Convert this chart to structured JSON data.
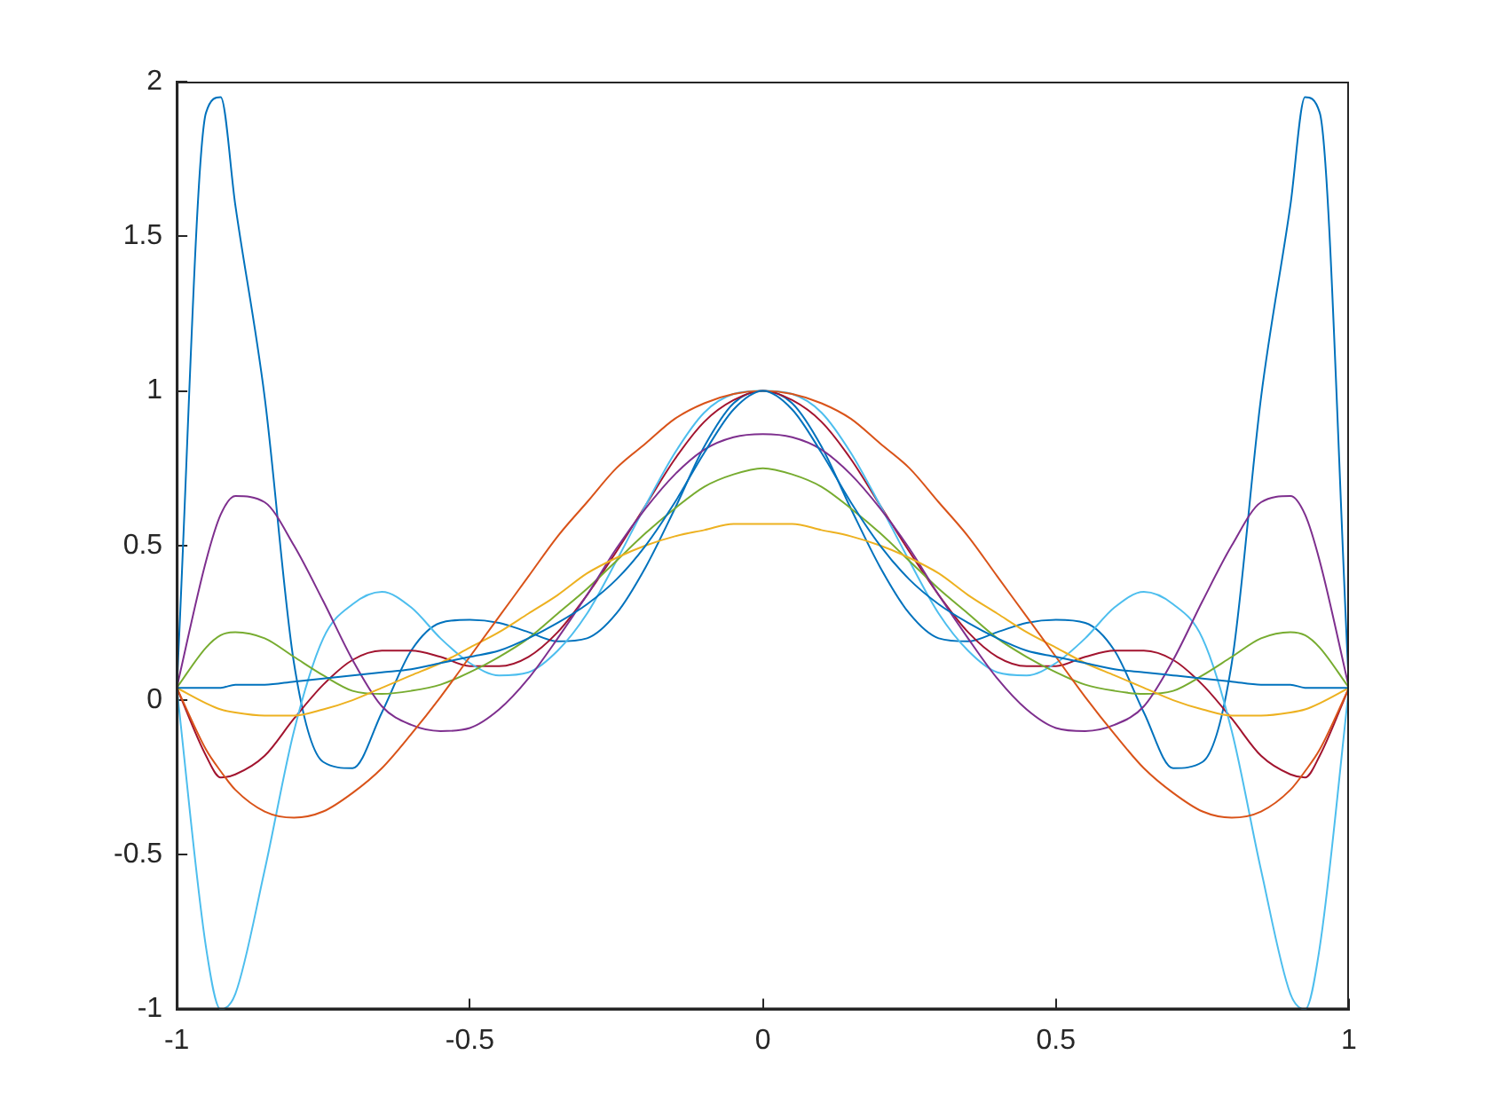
{
  "chart_data": {
    "type": "line",
    "legend": false,
    "x": [
      -1,
      -0.95,
      -0.925,
      -0.9,
      -0.85,
      -0.8,
      -0.75,
      -0.7,
      -0.65,
      -0.6,
      -0.55,
      -0.5,
      -0.45,
      -0.4,
      -0.35,
      -0.3,
      -0.25,
      -0.2,
      -0.15,
      -0.1,
      -0.05,
      0,
      0.05,
      0.1,
      0.15,
      0.2,
      0.25,
      0.3,
      0.35,
      0.4,
      0.45,
      0.5,
      0.55,
      0.6,
      0.65,
      0.7,
      0.75,
      0.8,
      0.85,
      0.9,
      0.925,
      0.95,
      1
    ],
    "xlim": [
      -1,
      1
    ],
    "xticks": [
      -1,
      -0.5,
      0,
      0.5,
      1
    ],
    "ylim": [
      -1,
      2
    ],
    "yticks": [
      -1,
      -0.5,
      0,
      0.5,
      1,
      1.5,
      2
    ],
    "series": [
      {
        "color": "#0072bd",
        "values": [
          0.04,
          0.04,
          0.04,
          0.05,
          0.05,
          0.06,
          0.07,
          0.08,
          0.09,
          0.1,
          0.12,
          0.14,
          0.16,
          0.2,
          0.25,
          0.31,
          0.39,
          0.5,
          0.64,
          0.8,
          0.94,
          1,
          0.94,
          0.8,
          0.64,
          0.5,
          0.39,
          0.31,
          0.25,
          0.2,
          0.16,
          0.14,
          0.12,
          0.1,
          0.09,
          0.08,
          0.07,
          0.06,
          0.05,
          0.05,
          0.04,
          0.04,
          0.04
        ]
      },
      {
        "color": "#d95319",
        "values": [
          0.04,
          -0.16,
          -0.23,
          -0.29,
          -0.36,
          -0.38,
          -0.36,
          -0.3,
          -0.22,
          -0.11,
          0.01,
          0.14,
          0.27,
          0.4,
          0.53,
          0.64,
          0.75,
          0.83,
          0.91,
          0.96,
          0.99,
          1,
          0.99,
          0.96,
          0.91,
          0.83,
          0.75,
          0.64,
          0.53,
          0.4,
          0.27,
          0.14,
          0.01,
          -0.11,
          -0.22,
          -0.3,
          -0.36,
          -0.38,
          -0.36,
          -0.29,
          -0.23,
          -0.16,
          0.04
        ]
      },
      {
        "color": "#edb120",
        "values": [
          0.04,
          -0.01,
          -0.03,
          -0.04,
          -0.05,
          -0.05,
          -0.03,
          0,
          0.04,
          0.08,
          0.12,
          0.17,
          0.22,
          0.28,
          0.34,
          0.41,
          0.46,
          0.5,
          0.53,
          0.55,
          0.57,
          0.57,
          0.57,
          0.55,
          0.53,
          0.5,
          0.46,
          0.41,
          0.34,
          0.28,
          0.22,
          0.17,
          0.12,
          0.08,
          0.04,
          0,
          -0.03,
          -0.05,
          -0.05,
          -0.04,
          -0.03,
          -0.01,
          0.04
        ]
      },
      {
        "color": "#7e2f8e",
        "values": [
          0.04,
          0.45,
          0.6,
          0.66,
          0.64,
          0.5,
          0.32,
          0.13,
          -0.02,
          -0.08,
          -0.1,
          -0.09,
          -0.03,
          0.07,
          0.2,
          0.34,
          0.49,
          0.62,
          0.73,
          0.81,
          0.85,
          0.86,
          0.85,
          0.81,
          0.73,
          0.62,
          0.49,
          0.34,
          0.2,
          0.07,
          -0.03,
          -0.09,
          -0.1,
          -0.08,
          -0.02,
          0.13,
          0.32,
          0.5,
          0.64,
          0.66,
          0.6,
          0.45,
          0.04
        ]
      },
      {
        "color": "#77ac30",
        "values": [
          0.04,
          0.17,
          0.21,
          0.22,
          0.2,
          0.14,
          0.08,
          0.03,
          0.02,
          0.03,
          0.05,
          0.09,
          0.14,
          0.2,
          0.28,
          0.36,
          0.45,
          0.54,
          0.62,
          0.69,
          0.73,
          0.75,
          0.73,
          0.69,
          0.62,
          0.54,
          0.45,
          0.36,
          0.28,
          0.2,
          0.14,
          0.09,
          0.05,
          0.03,
          0.02,
          0.03,
          0.08,
          0.14,
          0.2,
          0.22,
          0.21,
          0.17,
          0.04
        ]
      },
      {
        "color": "#4dbeee",
        "values": [
          0.04,
          -0.8,
          -1,
          -0.95,
          -0.55,
          -0.1,
          0.2,
          0.31,
          0.35,
          0.3,
          0.2,
          0.12,
          0.08,
          0.09,
          0.16,
          0.28,
          0.45,
          0.63,
          0.8,
          0.93,
          0.99,
          1,
          0.99,
          0.93,
          0.8,
          0.63,
          0.45,
          0.28,
          0.16,
          0.09,
          0.08,
          0.12,
          0.2,
          0.3,
          0.35,
          0.31,
          0.2,
          -0.1,
          -0.55,
          -0.95,
          -1,
          -0.8,
          0.04
        ]
      },
      {
        "color": "#a2142f",
        "values": [
          0.04,
          -0.18,
          -0.25,
          -0.24,
          -0.18,
          -0.06,
          0.05,
          0.13,
          0.16,
          0.16,
          0.14,
          0.11,
          0.11,
          0.14,
          0.22,
          0.34,
          0.48,
          0.63,
          0.78,
          0.9,
          0.97,
          1,
          0.97,
          0.9,
          0.78,
          0.63,
          0.48,
          0.34,
          0.22,
          0.14,
          0.11,
          0.11,
          0.14,
          0.16,
          0.16,
          0.13,
          0.05,
          -0.06,
          -0.18,
          -0.24,
          -0.25,
          -0.18,
          0.04
        ]
      },
      {
        "color": "#0072bd",
        "values": [
          0.04,
          1.9,
          1.95,
          1.6,
          0.98,
          0.12,
          -0.2,
          -0.22,
          -0.04,
          0.16,
          0.25,
          0.26,
          0.25,
          0.22,
          0.19,
          0.2,
          0.28,
          0.43,
          0.62,
          0.82,
          0.96,
          1,
          0.96,
          0.82,
          0.62,
          0.43,
          0.28,
          0.2,
          0.19,
          0.22,
          0.25,
          0.26,
          0.25,
          0.16,
          -0.04,
          -0.22,
          -0.2,
          0.12,
          0.98,
          1.6,
          1.95,
          1.9,
          0.04
        ]
      }
    ]
  }
}
